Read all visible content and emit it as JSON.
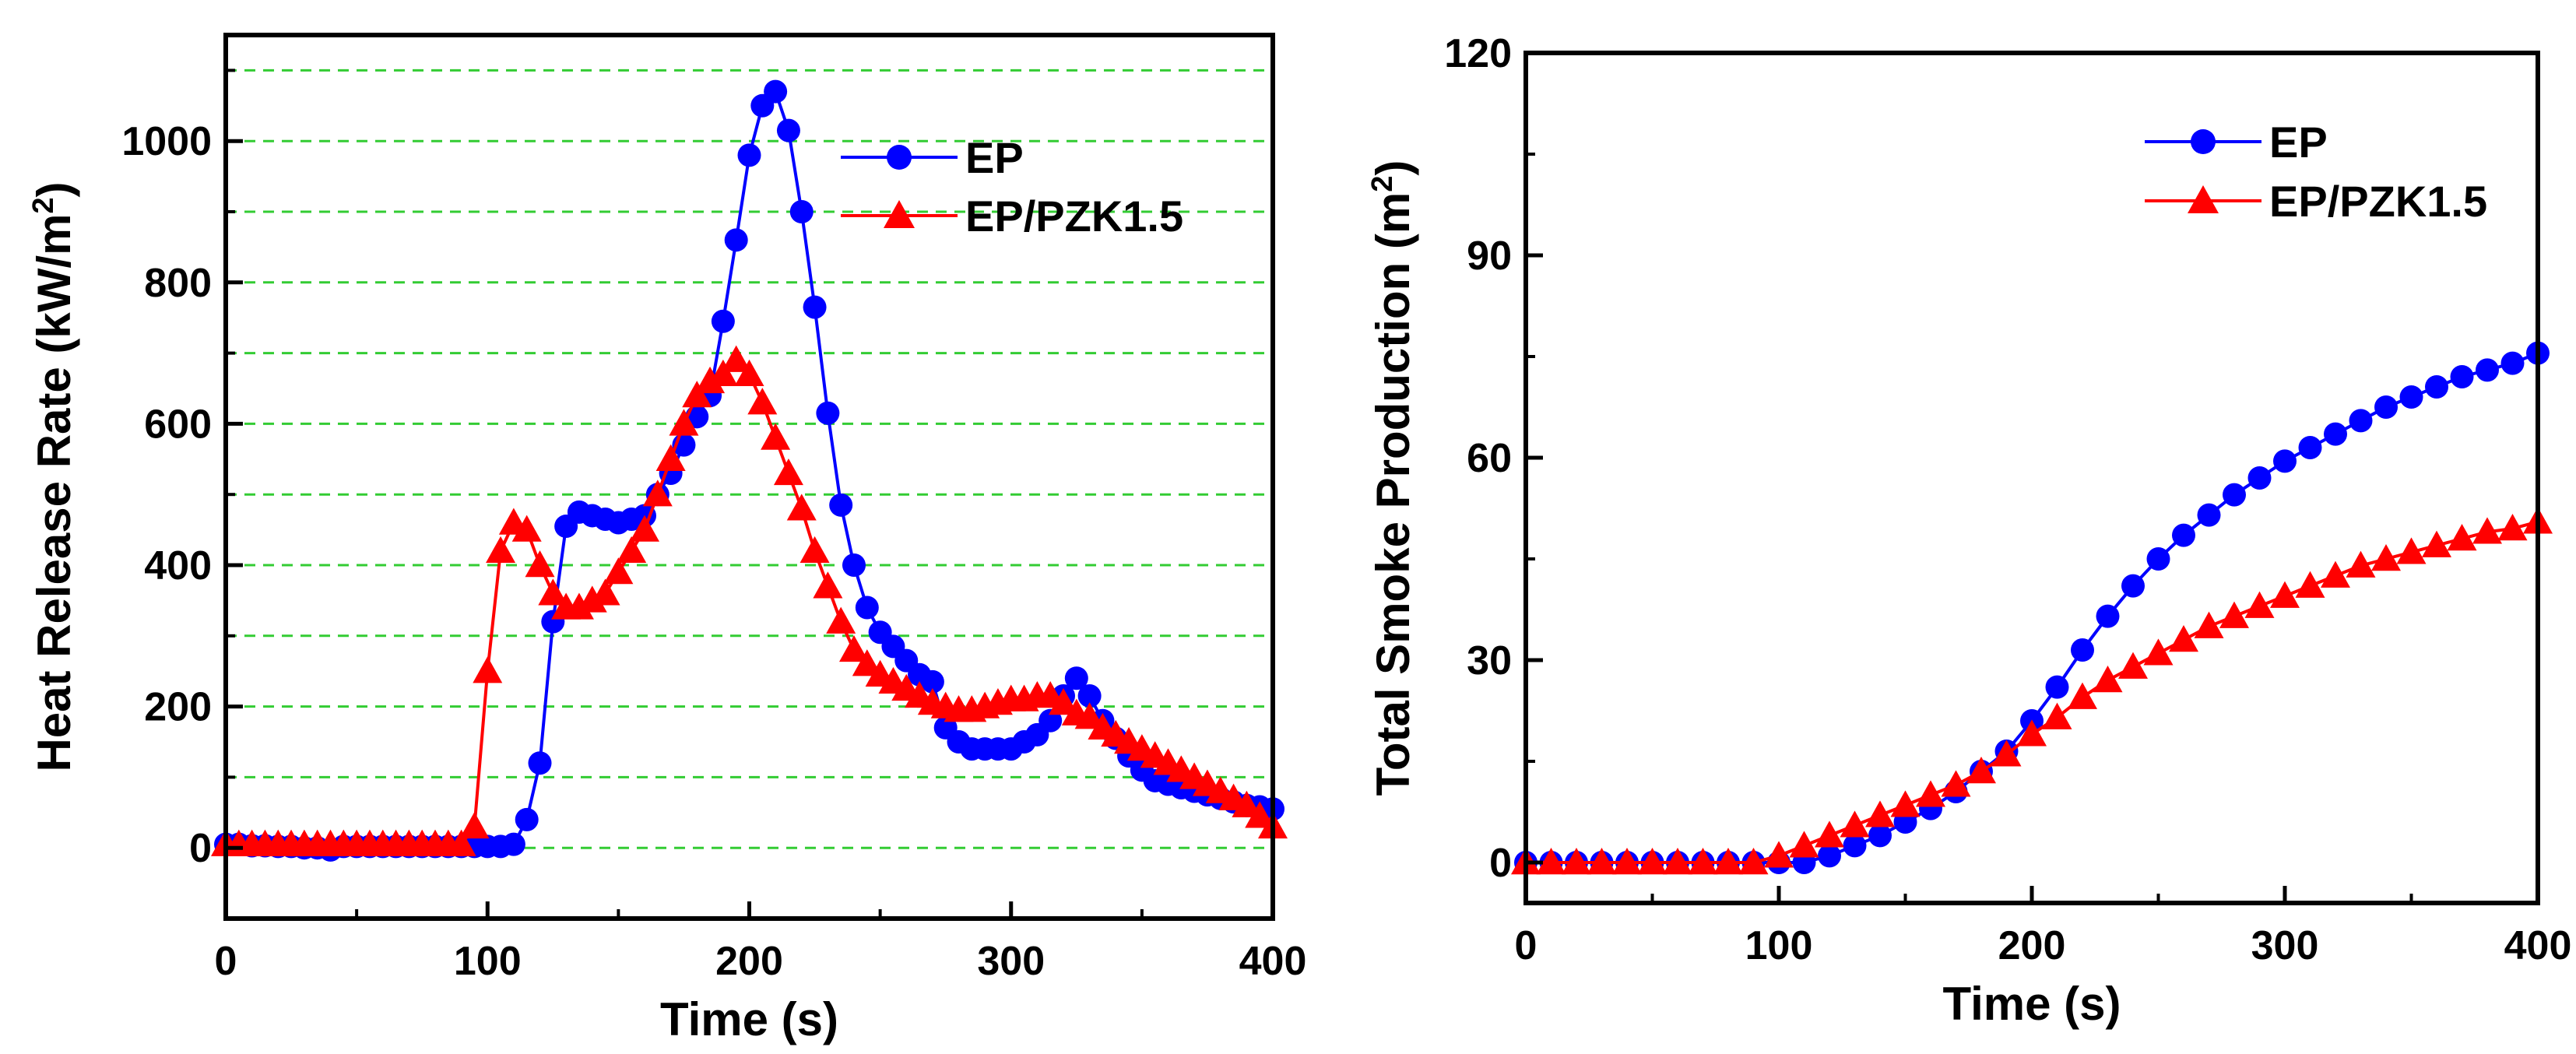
{
  "chart_data": [
    {
      "type": "line",
      "xlabel": "Time (s)",
      "ylabel": "Heat Release Rate (kW/m",
      "ylabel_sup": "2",
      "ylabel_close": ")",
      "xlim": [
        0,
        400
      ],
      "ylim": [
        -100,
        1150
      ],
      "xticks": [
        0,
        100,
        200,
        300,
        400
      ],
      "yticks": [
        0,
        200,
        400,
        600,
        800,
        1000
      ],
      "grid": "horizontal dashed green every 100",
      "grid_color": "#33cc33",
      "legend_position": "top-right",
      "series": [
        {
          "name": "EP",
          "color": "#0000ff",
          "marker": "circle",
          "x": [
            0,
            5,
            10,
            15,
            20,
            25,
            30,
            35,
            40,
            45,
            50,
            55,
            60,
            65,
            70,
            75,
            80,
            85,
            90,
            95,
            100,
            105,
            110,
            115,
            120,
            125,
            130,
            135,
            140,
            145,
            150,
            155,
            160,
            165,
            170,
            175,
            180,
            185,
            190,
            195,
            200,
            205,
            210,
            215,
            220,
            225,
            230,
            235,
            240,
            245,
            250,
            255,
            260,
            265,
            270,
            275,
            280,
            285,
            290,
            295,
            300,
            305,
            310,
            315,
            320,
            325,
            330,
            335,
            340,
            345,
            350,
            355,
            360,
            365,
            370,
            375,
            380,
            385,
            390,
            395,
            400
          ],
          "values": [
            5,
            5,
            3,
            3,
            2,
            2,
            0,
            0,
            -3,
            2,
            2,
            2,
            2,
            2,
            2,
            2,
            2,
            2,
            2,
            2,
            2,
            2,
            5,
            40,
            120,
            320,
            455,
            475,
            470,
            465,
            460,
            465,
            470,
            500,
            530,
            570,
            610,
            640,
            745,
            860,
            980,
            1050,
            1070,
            1015,
            900,
            765,
            615,
            485,
            400,
            340,
            305,
            285,
            265,
            245,
            235,
            170,
            150,
            140,
            140,
            140,
            140,
            150,
            160,
            180,
            215,
            240,
            215,
            180,
            155,
            130,
            110,
            95,
            90,
            85,
            80,
            75,
            70,
            65,
            60,
            58,
            55
          ]
        },
        {
          "name": "EP/PZK1.5",
          "color": "#ff0000",
          "marker": "triangle",
          "x": [
            0,
            5,
            10,
            15,
            20,
            25,
            30,
            35,
            40,
            45,
            50,
            55,
            60,
            65,
            70,
            75,
            80,
            85,
            90,
            95,
            100,
            105,
            110,
            115,
            120,
            125,
            130,
            135,
            140,
            145,
            150,
            155,
            160,
            165,
            170,
            175,
            180,
            185,
            190,
            195,
            200,
            205,
            210,
            215,
            220,
            225,
            230,
            235,
            240,
            245,
            250,
            255,
            260,
            265,
            270,
            275,
            280,
            285,
            290,
            295,
            300,
            305,
            310,
            315,
            320,
            325,
            330,
            335,
            340,
            345,
            350,
            355,
            360,
            365,
            370,
            375,
            380,
            385,
            390,
            395,
            400
          ],
          "values": [
            5,
            5,
            5,
            5,
            5,
            5,
            5,
            5,
            5,
            5,
            5,
            5,
            5,
            5,
            5,
            5,
            5,
            5,
            5,
            30,
            250,
            420,
            460,
            450,
            400,
            360,
            340,
            340,
            350,
            360,
            390,
            420,
            450,
            500,
            550,
            600,
            640,
            660,
            670,
            690,
            670,
            630,
            580,
            530,
            480,
            420,
            370,
            320,
            280,
            260,
            245,
            235,
            225,
            215,
            205,
            200,
            195,
            195,
            200,
            205,
            210,
            210,
            215,
            215,
            205,
            190,
            185,
            170,
            160,
            150,
            140,
            130,
            120,
            110,
            100,
            90,
            80,
            70,
            60,
            45,
            30
          ]
        }
      ]
    },
    {
      "type": "line",
      "xlabel": "Time (s)",
      "ylabel": "Total Smoke Production (m",
      "ylabel_sup": "2",
      "ylabel_close": ")",
      "xlim": [
        0,
        400
      ],
      "ylim": [
        -6,
        120
      ],
      "xticks": [
        0,
        100,
        200,
        300,
        400
      ],
      "yticks": [
        0,
        30,
        60,
        90,
        120
      ],
      "grid": "off",
      "legend_position": "top-right",
      "series": [
        {
          "name": "EP",
          "color": "#0000ff",
          "marker": "circle",
          "x": [
            0,
            10,
            20,
            30,
            40,
            50,
            60,
            70,
            80,
            90,
            100,
            110,
            120,
            130,
            140,
            150,
            160,
            170,
            180,
            190,
            200,
            210,
            220,
            230,
            240,
            250,
            260,
            270,
            280,
            290,
            300,
            310,
            320,
            330,
            340,
            350,
            360,
            370,
            380,
            390,
            400
          ],
          "values": [
            0,
            0,
            0,
            0,
            0,
            0,
            0,
            0,
            0,
            0,
            0,
            0,
            1,
            2.5,
            4,
            6,
            8,
            10.5,
            13.5,
            16.5,
            21,
            26,
            31.5,
            36.5,
            41,
            45,
            48.5,
            51.5,
            54.5,
            57,
            59.5,
            61.5,
            63.5,
            65.5,
            67.5,
            69,
            70.5,
            72,
            73,
            74,
            75.5
          ]
        },
        {
          "name": "EP/PZK1.5",
          "color": "#ff0000",
          "marker": "triangle",
          "x": [
            0,
            10,
            20,
            30,
            40,
            50,
            60,
            70,
            80,
            90,
            100,
            110,
            120,
            130,
            140,
            150,
            160,
            170,
            180,
            190,
            200,
            210,
            220,
            230,
            240,
            250,
            260,
            270,
            280,
            290,
            300,
            310,
            320,
            330,
            340,
            350,
            360,
            370,
            380,
            390,
            400
          ],
          "values": [
            0,
            0,
            0,
            0,
            0,
            0,
            0,
            0,
            0,
            0,
            1,
            2.5,
            4,
            5.5,
            7,
            8.5,
            10,
            11.5,
            13.5,
            16,
            19,
            21.5,
            24.5,
            27,
            29,
            31,
            33,
            35,
            36.5,
            38,
            39.5,
            41,
            42.5,
            44,
            45,
            46,
            47,
            48,
            49,
            49.5,
            50.5
          ]
        }
      ]
    }
  ]
}
